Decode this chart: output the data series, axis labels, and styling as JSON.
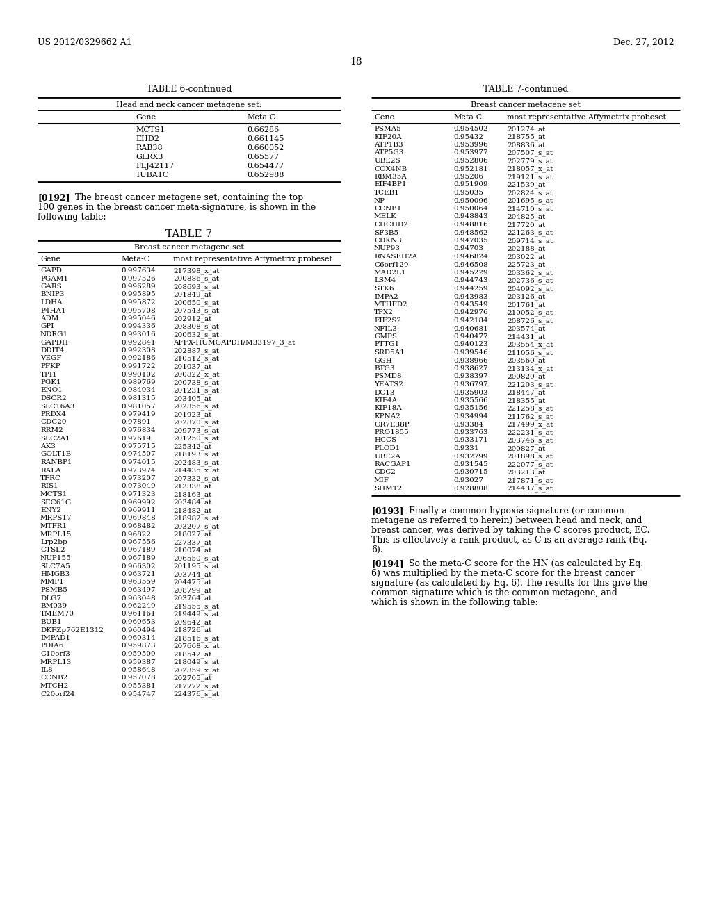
{
  "header_left": "US 2012/0329662 A1",
  "header_right": "Dec. 27, 2012",
  "page_number": "18",
  "table6_title": "TABLE 6-continued",
  "table6_subtitle": "Head and neck cancer metagene set:",
  "table6_col1": "Gene",
  "table6_col2": "Meta-C",
  "table6_data": [
    [
      "MCTS1",
      "0.66286"
    ],
    [
      "EHD2",
      "0.661145"
    ],
    [
      "RAB38",
      "0.660052"
    ],
    [
      "GLRX3",
      "0.65577"
    ],
    [
      "FLJ42117",
      "0.654477"
    ],
    [
      "TUBA1C",
      "0.652988"
    ]
  ],
  "para_0192_bold": "[0192]",
  "para_0192_text": "    The breast cancer metagene set, containing the top\n100 genes in the breast cancer meta-signature, is shown in the\nfollowing table:",
  "table7_title": "TABLE 7",
  "table7_subtitle": "Breast cancer metagene set",
  "table7_col1": "Gene",
  "table7_col2": "Meta-C",
  "table7_col3": "most representative Affymetrix probeset",
  "table7_data": [
    [
      "GAPD",
      "0.997634",
      "217398_x_at"
    ],
    [
      "PGAM1",
      "0.997526",
      "200886_s_at"
    ],
    [
      "GARS",
      "0.996289",
      "208693_s_at"
    ],
    [
      "BNIP3",
      "0.995895",
      "201849_at"
    ],
    [
      "LDHA",
      "0.995872",
      "200650_s_at"
    ],
    [
      "P4HA1",
      "0.995708",
      "207543_s_at"
    ],
    [
      "ADM",
      "0.995046",
      "202912_at"
    ],
    [
      "GPI",
      "0.994336",
      "208308_s_at"
    ],
    [
      "NDRG1",
      "0.993016",
      "200632_s_at"
    ],
    [
      "GAPDH",
      "0.992841",
      "AFFX-HUMGAPDH/M33197_3_at"
    ],
    [
      "DDIT4",
      "0.992308",
      "202887_s_at"
    ],
    [
      "VEGF",
      "0.992186",
      "210512_s_at"
    ],
    [
      "PFKP",
      "0.991722",
      "201037_at"
    ],
    [
      "TPI1",
      "0.990102",
      "200822_x_at"
    ],
    [
      "PGK1",
      "0.989769",
      "200738_s_at"
    ],
    [
      "ENO1",
      "0.984934",
      "201231_s_at"
    ],
    [
      "DSCR2",
      "0.981315",
      "203405_at"
    ],
    [
      "SLC16A3",
      "0.981057",
      "202856_s_at"
    ],
    [
      "PRDX4",
      "0.979419",
      "201923_at"
    ],
    [
      "CDC20",
      "0.97891",
      "202870_s_at"
    ],
    [
      "RRM2",
      "0.976834",
      "209773_s_at"
    ],
    [
      "SLC2A1",
      "0.97619",
      "201250_s_at"
    ],
    [
      "AK3",
      "0.975715",
      "225342_at"
    ],
    [
      "GOLT1B",
      "0.974507",
      "218193_s_at"
    ],
    [
      "RANBP1",
      "0.974015",
      "202483_s_at"
    ],
    [
      "RALA",
      "0.973974",
      "214435_x_at"
    ],
    [
      "TFRC",
      "0.973207",
      "207332_s_at"
    ],
    [
      "RIS1",
      "0.973049",
      "213338_at"
    ],
    [
      "MCTS1",
      "0.971323",
      "218163_at"
    ],
    [
      "SEC61G",
      "0.969992",
      "203484_at"
    ],
    [
      "ENY2",
      "0.969911",
      "218482_at"
    ],
    [
      "MRPS17",
      "0.969848",
      "218982_s_at"
    ],
    [
      "MTFR1",
      "0.968482",
      "203207_s_at"
    ],
    [
      "MRPL15",
      "0.96822",
      "218027_at"
    ],
    [
      "Lrp2bp",
      "0.967556",
      "227337_at"
    ],
    [
      "CTSL2",
      "0.967189",
      "210074_at"
    ],
    [
      "NUP155",
      "0.967189",
      "206550_s_at"
    ],
    [
      "SLC7A5",
      "0.966302",
      "201195_s_at"
    ],
    [
      "HMGB3",
      "0.963721",
      "203744_at"
    ],
    [
      "MMP1",
      "0.963559",
      "204475_at"
    ],
    [
      "PSMB5",
      "0.963497",
      "208799_at"
    ],
    [
      "DLG7",
      "0.963048",
      "203764_at"
    ],
    [
      "BM039",
      "0.962249",
      "219555_s_at"
    ],
    [
      "TMEM70",
      "0.961161",
      "219449_s_at"
    ],
    [
      "BUB1",
      "0.960653",
      "209642_at"
    ],
    [
      "DKFZp762E1312",
      "0.960494",
      "218726_at"
    ],
    [
      "IMPAD1",
      "0.960314",
      "218516_s_at"
    ],
    [
      "PDIA6",
      "0.959873",
      "207668_x_at"
    ],
    [
      "C10orf3",
      "0.959509",
      "218542_at"
    ],
    [
      "MRPL13",
      "0.959387",
      "218049_s_at"
    ],
    [
      "IL8",
      "0.958648",
      "202859_x_at"
    ],
    [
      "CCNB2",
      "0.957078",
      "202705_at"
    ],
    [
      "MTCH2",
      "0.955381",
      "217772_s_at"
    ],
    [
      "C20orf24",
      "0.954747",
      "224376_s_at"
    ]
  ],
  "table7b_title": "TABLE 7-continued",
  "table7b_data": [
    [
      "PSMA5",
      "0.954502",
      "201274_at"
    ],
    [
      "KIF20A",
      "0.95432",
      "218755_at"
    ],
    [
      "ATP1B3",
      "0.953996",
      "208836_at"
    ],
    [
      "ATP5G3",
      "0.953977",
      "207507_s_at"
    ],
    [
      "UBE2S",
      "0.952806",
      "202779_s_at"
    ],
    [
      "COX4NB",
      "0.952181",
      "218057_x_at"
    ],
    [
      "RBM35A",
      "0.95206",
      "219121_s_at"
    ],
    [
      "EIF4BP1",
      "0.951909",
      "221539_at"
    ],
    [
      "TCEB1",
      "0.95035",
      "202824_s_at"
    ],
    [
      "NP",
      "0.950096",
      "201695_s_at"
    ],
    [
      "CCNB1",
      "0.950064",
      "214710_s_at"
    ],
    [
      "MELK",
      "0.948843",
      "204825_at"
    ],
    [
      "CHCHD2",
      "0.948816",
      "217720_at"
    ],
    [
      "SF3B5",
      "0.948562",
      "221263_s_at"
    ],
    [
      "CDKN3",
      "0.947035",
      "209714_s_at"
    ],
    [
      "NUP93",
      "0.94703",
      "202188_at"
    ],
    [
      "RNASEH2A",
      "0.946824",
      "203022_at"
    ],
    [
      "C6orf129",
      "0.946508",
      "225723_at"
    ],
    [
      "MAD2L1",
      "0.945229",
      "203362_s_at"
    ],
    [
      "LSM4",
      "0.944743",
      "202736_s_at"
    ],
    [
      "STK6",
      "0.944259",
      "204092_s_at"
    ],
    [
      "IMPA2",
      "0.943983",
      "203126_at"
    ],
    [
      "MTHFD2",
      "0.943549",
      "201761_at"
    ],
    [
      "TPX2",
      "0.942976",
      "210052_s_at"
    ],
    [
      "EIF2S2",
      "0.942184",
      "208726_s_at"
    ],
    [
      "NFIL3",
      "0.940681",
      "203574_at"
    ],
    [
      "GMPS",
      "0.940477",
      "214431_at"
    ],
    [
      "PTTG1",
      "0.940123",
      "203554_x_at"
    ],
    [
      "SRD5A1",
      "0.939546",
      "211056_s_at"
    ],
    [
      "GGH",
      "0.938966",
      "203560_at"
    ],
    [
      "BTG3",
      "0.938627",
      "213134_x_at"
    ],
    [
      "PSMD8",
      "0.938397",
      "200820_at"
    ],
    [
      "YEATS2",
      "0.936797",
      "221203_s_at"
    ],
    [
      "DC13",
      "0.935903",
      "218447_at"
    ],
    [
      "KIF4A",
      "0.935566",
      "218355_at"
    ],
    [
      "KIF18A",
      "0.935156",
      "221258_s_at"
    ],
    [
      "KPNA2",
      "0.934994",
      "211762_s_at"
    ],
    [
      "OR7E38P",
      "0.93384",
      "217499_x_at"
    ],
    [
      "PRO1855",
      "0.933763",
      "222231_s_at"
    ],
    [
      "HCCS",
      "0.933171",
      "203746_s_at"
    ],
    [
      "PLOD1",
      "0.9331",
      "200827_at"
    ],
    [
      "UBE2A",
      "0.932799",
      "201898_s_at"
    ],
    [
      "RACGAP1",
      "0.931545",
      "222077_s_at"
    ],
    [
      "CDC2",
      "0.930715",
      "203213_at"
    ],
    [
      "MIF",
      "0.93027",
      "217871_s_at"
    ],
    [
      "SHMT2",
      "0.928808",
      "214437_s_at"
    ]
  ],
  "para_0193_bold": "[0193]",
  "para_0193_text": "    Finally a common hypoxia signature (or common\nmetagene as referred to herein) between head and neck, and\nbreast cancer, was derived by taking the C scores product, EC.\nThis is effectively a rank product, as C is an average rank (Eq.\n6).",
  "para_0194_bold": "[0194]",
  "para_0194_text": "    So the meta-C score for the HN (as calculated by Eq.\n6) was multiplied by the meta-C score for the breast cancer\nsignature (as calculated by Eq. 6). The results for this give the\ncommon signature which is the common metagene, and\nwhich is shown in the following table:"
}
